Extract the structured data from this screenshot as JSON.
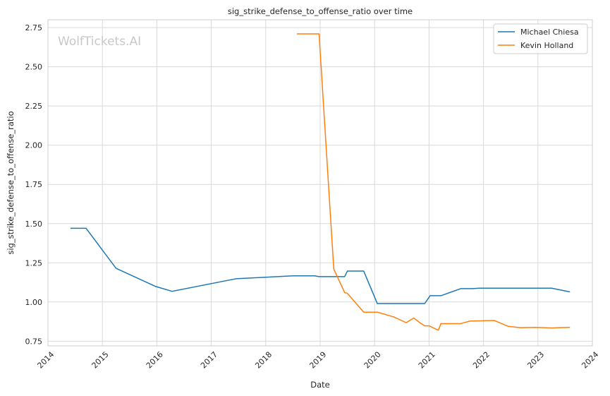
{
  "chart_data": {
    "type": "line",
    "title": "sig_strike_defense_to_offense_ratio over time",
    "xlabel": "Date",
    "ylabel": "sig_strike_defense_to_offense_ratio",
    "watermark": "WolfTickets.AI",
    "xlim": [
      2014.0,
      2024.0
    ],
    "ylim": [
      0.72,
      2.8
    ],
    "x_ticks": [
      2014,
      2015,
      2016,
      2017,
      2018,
      2019,
      2020,
      2021,
      2022,
      2023,
      2024
    ],
    "x_tick_labels": [
      "2014",
      "2015",
      "2016",
      "2017",
      "2018",
      "2019",
      "2020",
      "2021",
      "2022",
      "2023",
      "2024"
    ],
    "y_ticks": [
      0.75,
      1.0,
      1.25,
      1.5,
      1.75,
      2.0,
      2.25,
      2.5,
      2.75
    ],
    "y_tick_labels": [
      "0.75",
      "1.00",
      "1.25",
      "1.50",
      "1.75",
      "2.00",
      "2.25",
      "2.50",
      "2.75"
    ],
    "grid": true,
    "legend_position": "top-right",
    "series": [
      {
        "name": "Michael Chiesa",
        "color": "#1f77b4",
        "x": [
          2014.42,
          2014.7,
          2015.25,
          2015.97,
          2016.28,
          2017.45,
          2018.5,
          2018.9,
          2018.98,
          2019.45,
          2019.5,
          2019.8,
          2020.05,
          2020.5,
          2020.92,
          2021.02,
          2021.22,
          2021.58,
          2021.8,
          2021.92,
          2022.3,
          2022.7,
          2023.25,
          2023.58
        ],
        "y": [
          1.47,
          1.47,
          1.215,
          1.1,
          1.068,
          1.148,
          1.167,
          1.167,
          1.162,
          1.162,
          1.197,
          1.197,
          0.99,
          0.99,
          0.99,
          1.04,
          1.04,
          1.085,
          1.085,
          1.088,
          1.088,
          1.088,
          1.088,
          1.065
        ]
      },
      {
        "name": "Kevin Holland",
        "color": "#ff7f0e",
        "x": [
          2018.58,
          2018.98,
          2019.25,
          2019.45,
          2019.5,
          2019.8,
          2020.05,
          2020.35,
          2020.58,
          2020.72,
          2020.83,
          2020.92,
          2021.0,
          2021.17,
          2021.22,
          2021.58,
          2021.75,
          2022.2,
          2022.45,
          2022.68,
          2022.95,
          2023.25,
          2023.58
        ],
        "y": [
          2.71,
          2.71,
          1.21,
          1.06,
          1.055,
          0.935,
          0.935,
          0.905,
          0.868,
          0.898,
          0.868,
          0.848,
          0.848,
          0.82,
          0.862,
          0.862,
          0.878,
          0.882,
          0.845,
          0.836,
          0.838,
          0.834,
          0.838
        ]
      }
    ]
  }
}
